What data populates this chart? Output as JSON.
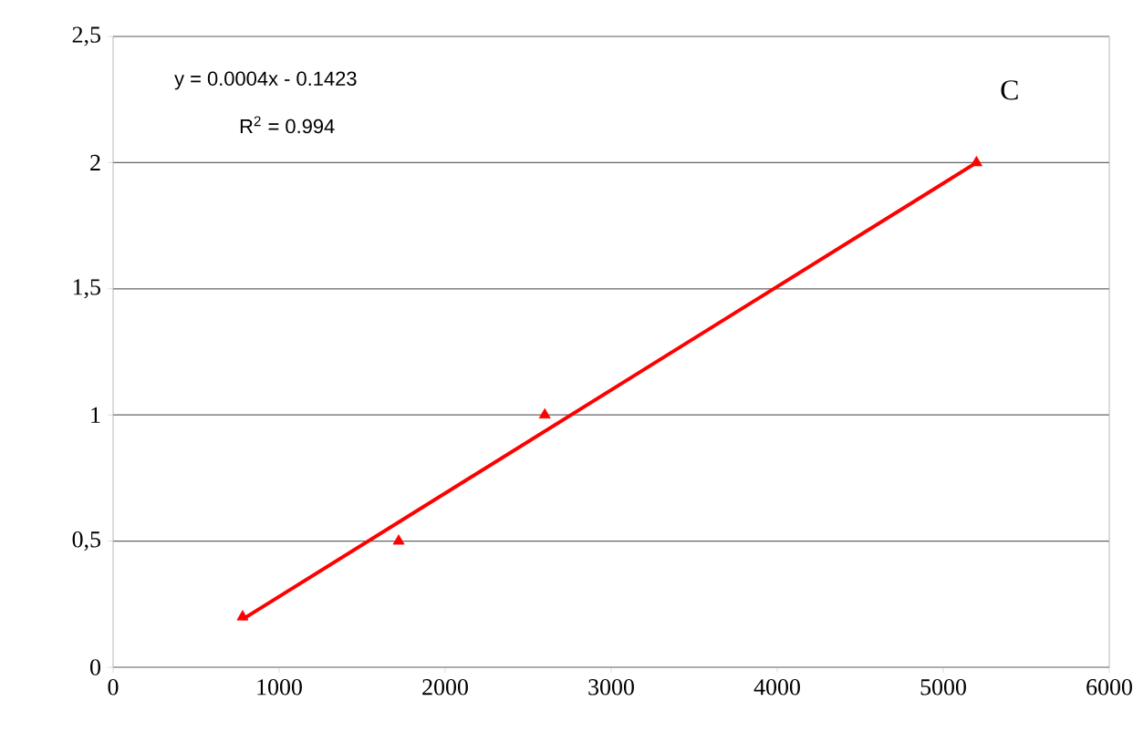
{
  "chart_data": {
    "type": "scatter",
    "annotations": [
      "y = 0.0004x - 0.1423",
      "R$^{2}$ = 0.994",
      "C"
    ],
    "series": [
      {
        "color": "#ff0000",
        "marker": "triangle",
        "x": [
          780,
          1720,
          2600,
          5200
        ],
        "values": [
          0.2,
          0.5,
          1.0,
          2.0
        ]
      },
      {
        "type": "line",
        "color": "#ff0000",
        "marker": "none",
        "line_style": "solid",
        "x": [
          780,
          5200
        ],
        "values": [
          0.19,
          2.0
        ]
      }
    ],
    "xlim": [
      0,
      6000
    ],
    "xticks": [
      0,
      1000,
      2000,
      3000,
      4000,
      5000,
      6000
    ],
    "ylim": [
      0,
      2.5
    ],
    "yticks": [
      {
        "value": 0,
        "label": "0"
      },
      {
        "value": 0.5,
        "label": "0,5"
      },
      {
        "value": 1,
        "label": "1"
      },
      {
        "value": 1.5,
        "label": "1,5"
      },
      {
        "value": 2,
        "label": "2"
      },
      {
        "value": 2.5,
        "label": "2,5"
      }
    ],
    "grid": "y"
  }
}
